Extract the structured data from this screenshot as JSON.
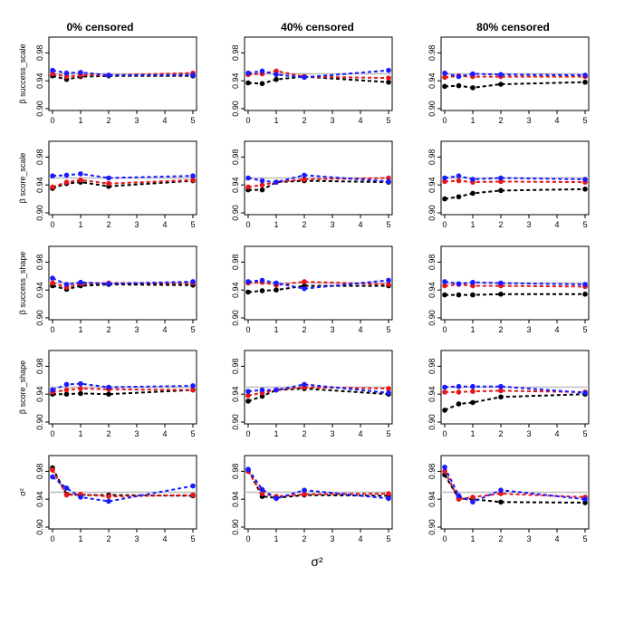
{
  "figure": {
    "column_titles": [
      "0% censored",
      "40% censored",
      "80% censored"
    ],
    "row_labels": [
      "β success_scale",
      "β score_scale",
      "β success_shape",
      "β score_shape",
      "σ²"
    ],
    "xlabel": "σ²",
    "colors": {
      "black": "#000000",
      "red": "#e8151b",
      "blue": "#1a1aff",
      "reference": "#bdbdbd",
      "frame": "#000000"
    }
  },
  "chart_data": {
    "type": "line",
    "layout": "5 rows x 3 columns small multiples",
    "x": [
      0,
      0.5,
      1,
      2,
      5
    ],
    "xlim": [
      0,
      5
    ],
    "xticks": [
      0,
      1,
      2,
      3,
      4,
      5
    ],
    "ylim": [
      0.9,
      1.0
    ],
    "yticks": [
      "0.90",
      "0.94",
      "0.98"
    ],
    "reference_line": 0.95,
    "series_names": [
      "black",
      "red",
      "blue"
    ],
    "panels": [
      {
        "row": 0,
        "col": 0,
        "series": [
          {
            "name": "black",
            "values": [
              0.947,
              0.942,
              0.946,
              0.947,
              0.947
            ]
          },
          {
            "name": "red",
            "values": [
              0.95,
              0.946,
              0.948,
              0.948,
              0.951
            ]
          },
          {
            "name": "blue",
            "values": [
              0.955,
              0.951,
              0.952,
              0.948,
              0.948
            ]
          }
        ]
      },
      {
        "row": 0,
        "col": 1,
        "series": [
          {
            "name": "black",
            "values": [
              0.937,
              0.936,
              0.942,
              0.946,
              0.938
            ]
          },
          {
            "name": "red",
            "values": [
              0.949,
              0.95,
              0.954,
              0.946,
              0.944
            ]
          },
          {
            "name": "blue",
            "values": [
              0.951,
              0.954,
              0.949,
              0.945,
              0.955
            ]
          }
        ]
      },
      {
        "row": 0,
        "col": 2,
        "series": [
          {
            "name": "black",
            "values": [
              0.932,
              0.933,
              0.93,
              0.935,
              0.938
            ]
          },
          {
            "name": "red",
            "values": [
              0.945,
              0.947,
              0.946,
              0.946,
              0.946
            ]
          },
          {
            "name": "blue",
            "values": [
              0.951,
              0.946,
              0.95,
              0.949,
              0.948
            ]
          }
        ]
      },
      {
        "row": 1,
        "col": 0,
        "series": [
          {
            "name": "black",
            "values": [
              0.935,
              0.942,
              0.944,
              0.938,
              0.946
            ]
          },
          {
            "name": "red",
            "values": [
              0.937,
              0.944,
              0.947,
              0.942,
              0.947
            ]
          },
          {
            "name": "blue",
            "values": [
              0.953,
              0.954,
              0.956,
              0.95,
              0.953
            ]
          }
        ]
      },
      {
        "row": 1,
        "col": 1,
        "series": [
          {
            "name": "black",
            "values": [
              0.933,
              0.933,
              0.944,
              0.946,
              0.944
            ]
          },
          {
            "name": "red",
            "values": [
              0.937,
              0.94,
              0.944,
              0.948,
              0.95
            ]
          },
          {
            "name": "blue",
            "values": [
              0.95,
              0.946,
              0.944,
              0.954,
              0.945
            ]
          }
        ]
      },
      {
        "row": 1,
        "col": 2,
        "series": [
          {
            "name": "black",
            "values": [
              0.92,
              0.923,
              0.928,
              0.932,
              0.934
            ]
          },
          {
            "name": "red",
            "values": [
              0.945,
              0.946,
              0.944,
              0.945,
              0.944
            ]
          },
          {
            "name": "blue",
            "values": [
              0.95,
              0.953,
              0.948,
              0.95,
              0.948
            ]
          }
        ]
      },
      {
        "row": 2,
        "col": 0,
        "series": [
          {
            "name": "black",
            "values": [
              0.946,
              0.941,
              0.946,
              0.948,
              0.947
            ]
          },
          {
            "name": "red",
            "values": [
              0.95,
              0.944,
              0.949,
              0.95,
              0.95
            ]
          },
          {
            "name": "blue",
            "values": [
              0.957,
              0.948,
              0.951,
              0.949,
              0.952
            ]
          }
        ]
      },
      {
        "row": 2,
        "col": 1,
        "series": [
          {
            "name": "black",
            "values": [
              0.937,
              0.939,
              0.94,
              0.946,
              0.946
            ]
          },
          {
            "name": "red",
            "values": [
              0.95,
              0.951,
              0.947,
              0.952,
              0.948
            ]
          },
          {
            "name": "blue",
            "values": [
              0.952,
              0.954,
              0.95,
              0.942,
              0.954
            ]
          }
        ]
      },
      {
        "row": 2,
        "col": 2,
        "series": [
          {
            "name": "black",
            "values": [
              0.933,
              0.933,
              0.933,
              0.934,
              0.934
            ]
          },
          {
            "name": "red",
            "values": [
              0.946,
              0.948,
              0.946,
              0.946,
              0.945
            ]
          },
          {
            "name": "blue",
            "values": [
              0.952,
              0.949,
              0.951,
              0.95,
              0.948
            ]
          }
        ]
      },
      {
        "row": 3,
        "col": 0,
        "series": [
          {
            "name": "black",
            "values": [
              0.94,
              0.94,
              0.941,
              0.94,
              0.946
            ]
          },
          {
            "name": "red",
            "values": [
              0.943,
              0.946,
              0.948,
              0.947,
              0.946
            ]
          },
          {
            "name": "blue",
            "values": [
              0.946,
              0.954,
              0.955,
              0.95,
              0.952
            ]
          }
        ]
      },
      {
        "row": 3,
        "col": 1,
        "series": [
          {
            "name": "black",
            "values": [
              0.93,
              0.937,
              0.946,
              0.948,
              0.94
            ]
          },
          {
            "name": "red",
            "values": [
              0.938,
              0.942,
              0.946,
              0.95,
              0.948
            ]
          },
          {
            "name": "blue",
            "values": [
              0.944,
              0.946,
              0.946,
              0.954,
              0.942
            ]
          }
        ]
      },
      {
        "row": 3,
        "col": 2,
        "series": [
          {
            "name": "black",
            "values": [
              0.917,
              0.926,
              0.928,
              0.936,
              0.94
            ]
          },
          {
            "name": "red",
            "values": [
              0.943,
              0.943,
              0.944,
              0.945,
              0.943
            ]
          },
          {
            "name": "blue",
            "values": [
              0.95,
              0.951,
              0.951,
              0.951,
              0.942
            ]
          }
        ]
      },
      {
        "row": 4,
        "col": 0,
        "series": [
          {
            "name": "black",
            "values": [
              0.985,
              0.947,
              0.946,
              0.946,
              0.945
            ]
          },
          {
            "name": "red",
            "values": [
              0.982,
              0.946,
              0.947,
              0.944,
              0.946
            ]
          },
          {
            "name": "blue",
            "values": [
              0.972,
              0.956,
              0.943,
              0.937,
              0.959
            ]
          }
        ]
      },
      {
        "row": 4,
        "col": 1,
        "series": [
          {
            "name": "black",
            "values": [
              0.982,
              0.944,
              0.942,
              0.946,
              0.945
            ]
          },
          {
            "name": "red",
            "values": [
              0.98,
              0.948,
              0.944,
              0.947,
              0.948
            ]
          },
          {
            "name": "blue",
            "values": [
              0.983,
              0.954,
              0.941,
              0.953,
              0.941
            ]
          }
        ]
      },
      {
        "row": 4,
        "col": 2,
        "series": [
          {
            "name": "black",
            "values": [
              0.975,
              0.941,
              0.94,
              0.936,
              0.935
            ]
          },
          {
            "name": "red",
            "values": [
              0.98,
              0.94,
              0.943,
              0.948,
              0.943
            ]
          },
          {
            "name": "blue",
            "values": [
              0.986,
              0.945,
              0.936,
              0.953,
              0.94
            ]
          }
        ]
      }
    ]
  }
}
